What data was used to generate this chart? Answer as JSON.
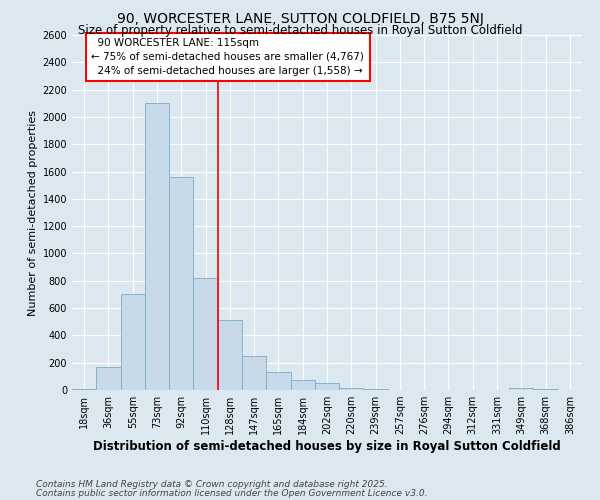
{
  "title": "90, WORCESTER LANE, SUTTON COLDFIELD, B75 5NJ",
  "subtitle": "Size of property relative to semi-detached houses in Royal Sutton Coldfield",
  "xlabel": "Distribution of semi-detached houses by size in Royal Sutton Coldfield",
  "ylabel": "Number of semi-detached properties",
  "categories": [
    "18sqm",
    "36sqm",
    "55sqm",
    "73sqm",
    "92sqm",
    "110sqm",
    "128sqm",
    "147sqm",
    "165sqm",
    "184sqm",
    "202sqm",
    "220sqm",
    "239sqm",
    "257sqm",
    "276sqm",
    "294sqm",
    "312sqm",
    "331sqm",
    "349sqm",
    "368sqm",
    "386sqm"
  ],
  "values": [
    5,
    170,
    700,
    2100,
    1560,
    820,
    510,
    250,
    130,
    70,
    48,
    18,
    8,
    2,
    0,
    0,
    0,
    0,
    18,
    5,
    0
  ],
  "bar_color": "#c8daea",
  "bar_edge_color": "#7aaac8",
  "redline_index": 5,
  "redline_label": "90 WORCESTER LANE: 115sqm",
  "pct_smaller": 75,
  "pct_smaller_count": "4,767",
  "pct_larger": 24,
  "pct_larger_count": "1,558",
  "ylim": [
    0,
    2600
  ],
  "yticks": [
    0,
    200,
    400,
    600,
    800,
    1000,
    1200,
    1400,
    1600,
    1800,
    2000,
    2200,
    2400,
    2600
  ],
  "footnote1": "Contains HM Land Registry data © Crown copyright and database right 2025.",
  "footnote2": "Contains public sector information licensed under the Open Government Licence v3.0.",
  "background_color": "#dce8f0",
  "plot_bg_color": "#dce8f0",
  "title_fontsize": 10,
  "subtitle_fontsize": 8.5,
  "xlabel_fontsize": 8.5,
  "ylabel_fontsize": 8,
  "tick_fontsize": 7,
  "annotation_fontsize": 7.5,
  "footnote_fontsize": 6.5
}
